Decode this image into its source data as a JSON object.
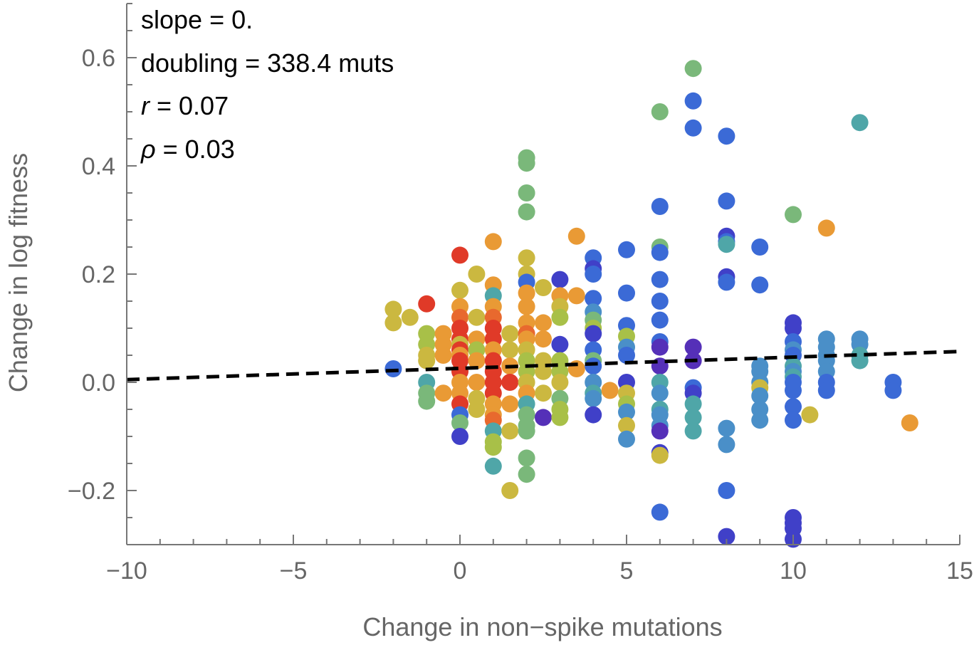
{
  "chart_data": {
    "type": "scatter",
    "title": "",
    "xlabel": "Change in non−spike mutations",
    "ylabel": "Change in log fitness",
    "xlim": [
      -10,
      15
    ],
    "ylim": [
      -0.3,
      0.7
    ],
    "xticks": [
      -10,
      -5,
      0,
      5,
      10,
      15
    ],
    "xtick_labels": [
      "−10",
      "−5",
      "0",
      "5",
      "10",
      "15"
    ],
    "yticks": [
      -0.2,
      0.0,
      0.2,
      0.4,
      0.6
    ],
    "ytick_labels": [
      "−0.2",
      "0.0",
      "0.2",
      "0.4",
      "0.6"
    ],
    "grid": false,
    "fit_line": {
      "style": "dashed",
      "color": "#000000",
      "x": [
        -10,
        15
      ],
      "y": [
        0.005,
        0.057
      ]
    },
    "annotations": {
      "slope": {
        "label": "slope = 0."
      },
      "doubling": {
        "label": "doubling = 338.4 muts"
      },
      "r": {
        "symbol": "r",
        "text": " = 0.07"
      },
      "rho": {
        "symbol": "ρ",
        "text": " = 0.03"
      }
    },
    "colors": {
      "R": "#e03a28",
      "OR": "#e8692e",
      "O": "#e99a35",
      "Y": "#cbb840",
      "L": "#a8c048",
      "G": "#7ab87a",
      "T": "#4fa6a8",
      "LB": "#4a8fc8",
      "B": "#3b6ad6",
      "I": "#4040c8",
      "P": "#5530b8"
    },
    "points": [
      [
        -2,
        0.135,
        "Y"
      ],
      [
        -2,
        0.11,
        "Y"
      ],
      [
        -2,
        0.025,
        "B"
      ],
      [
        -1.5,
        0.12,
        "Y"
      ],
      [
        -1,
        0.145,
        "R"
      ],
      [
        -1,
        0.09,
        "L"
      ],
      [
        -1,
        0.07,
        "L"
      ],
      [
        -1,
        0.05,
        "Y"
      ],
      [
        -1,
        0.04,
        "Y"
      ],
      [
        -1,
        0.0,
        "T"
      ],
      [
        -1,
        -0.02,
        "G"
      ],
      [
        -1,
        -0.035,
        "G"
      ],
      [
        -0.5,
        0.09,
        "O"
      ],
      [
        -0.5,
        0.07,
        "O"
      ],
      [
        -0.5,
        0.05,
        "O"
      ],
      [
        -0.5,
        -0.02,
        "O"
      ],
      [
        0,
        0.235,
        "R"
      ],
      [
        0,
        0.17,
        "Y"
      ],
      [
        0,
        0.14,
        "O"
      ],
      [
        0,
        0.12,
        "OR"
      ],
      [
        0,
        0.1,
        "R"
      ],
      [
        0,
        0.08,
        "R"
      ],
      [
        0,
        0.07,
        "Y"
      ],
      [
        0,
        0.06,
        "R"
      ],
      [
        0,
        0.05,
        "O"
      ],
      [
        0,
        0.04,
        "R"
      ],
      [
        0,
        0.02,
        "R"
      ],
      [
        0,
        0.0,
        "O"
      ],
      [
        0,
        -0.02,
        "O"
      ],
      [
        0,
        -0.04,
        "R"
      ],
      [
        0,
        -0.06,
        "B"
      ],
      [
        0,
        -0.075,
        "G"
      ],
      [
        0,
        -0.1,
        "I"
      ],
      [
        0.5,
        0.2,
        "Y"
      ],
      [
        0.5,
        0.12,
        "Y"
      ],
      [
        0.5,
        0.08,
        "O"
      ],
      [
        0.5,
        0.06,
        "L"
      ],
      [
        0.5,
        0.04,
        "O"
      ],
      [
        0.5,
        0.0,
        "O"
      ],
      [
        0.5,
        -0.03,
        "Y"
      ],
      [
        0.5,
        -0.05,
        "Y"
      ],
      [
        1,
        0.26,
        "O"
      ],
      [
        1,
        0.18,
        "O"
      ],
      [
        1,
        0.16,
        "T"
      ],
      [
        1,
        0.14,
        "O"
      ],
      [
        1,
        0.12,
        "OR"
      ],
      [
        1,
        0.1,
        "R"
      ],
      [
        1,
        0.08,
        "R"
      ],
      [
        1,
        0.06,
        "O"
      ],
      [
        1,
        0.04,
        "R"
      ],
      [
        1,
        0.02,
        "R"
      ],
      [
        1,
        0.0,
        "R"
      ],
      [
        1,
        -0.02,
        "R"
      ],
      [
        1,
        -0.04,
        "O"
      ],
      [
        1,
        -0.06,
        "O"
      ],
      [
        1,
        -0.07,
        "OR"
      ],
      [
        1,
        -0.09,
        "T"
      ],
      [
        1,
        -0.11,
        "L"
      ],
      [
        1,
        -0.12,
        "L"
      ],
      [
        1,
        -0.155,
        "T"
      ],
      [
        1.5,
        0.09,
        "Y"
      ],
      [
        1.5,
        0.06,
        "Y"
      ],
      [
        1.5,
        0.03,
        "O"
      ],
      [
        1.5,
        0.0,
        "R"
      ],
      [
        1.5,
        -0.04,
        "O"
      ],
      [
        1.5,
        -0.09,
        "Y"
      ],
      [
        1.5,
        -0.2,
        "Y"
      ],
      [
        2,
        0.415,
        "G"
      ],
      [
        2,
        0.405,
        "G"
      ],
      [
        2,
        0.35,
        "G"
      ],
      [
        2,
        0.315,
        "G"
      ],
      [
        2,
        0.23,
        "Y"
      ],
      [
        2,
        0.2,
        "Y"
      ],
      [
        2,
        0.185,
        "B"
      ],
      [
        2,
        0.165,
        "O"
      ],
      [
        2,
        0.14,
        "O"
      ],
      [
        2,
        0.11,
        "O"
      ],
      [
        2,
        0.09,
        "OR"
      ],
      [
        2,
        0.08,
        "O"
      ],
      [
        2,
        0.06,
        "Y"
      ],
      [
        2,
        0.04,
        "L"
      ],
      [
        2,
        0.02,
        "L"
      ],
      [
        2,
        0.0,
        "Y"
      ],
      [
        2,
        -0.02,
        "O"
      ],
      [
        2,
        -0.04,
        "T"
      ],
      [
        2,
        -0.06,
        "G"
      ],
      [
        2,
        -0.08,
        "G"
      ],
      [
        2,
        -0.09,
        "G"
      ],
      [
        2,
        -0.14,
        "G"
      ],
      [
        2,
        -0.17,
        "G"
      ],
      [
        2.5,
        0.175,
        "Y"
      ],
      [
        2.5,
        0.11,
        "O"
      ],
      [
        2.5,
        0.08,
        "O"
      ],
      [
        2.5,
        0.04,
        "Y"
      ],
      [
        2.5,
        0.02,
        "Y"
      ],
      [
        2.5,
        -0.02,
        "Y"
      ],
      [
        2.5,
        -0.065,
        "P"
      ],
      [
        3,
        0.19,
        "I"
      ],
      [
        3,
        0.16,
        "O"
      ],
      [
        3,
        0.14,
        "Y"
      ],
      [
        3,
        0.12,
        "L"
      ],
      [
        3,
        0.07,
        "I"
      ],
      [
        3,
        0.04,
        "L"
      ],
      [
        3,
        0.02,
        "L"
      ],
      [
        3,
        0.0,
        "Y"
      ],
      [
        3,
        -0.03,
        "G"
      ],
      [
        3,
        -0.05,
        "L"
      ],
      [
        3,
        -0.065,
        "L"
      ],
      [
        3.5,
        0.27,
        "O"
      ],
      [
        3.5,
        0.16,
        "O"
      ],
      [
        3.5,
        0.025,
        "O"
      ],
      [
        4,
        0.23,
        "B"
      ],
      [
        4,
        0.21,
        "I"
      ],
      [
        4,
        0.2,
        "B"
      ],
      [
        4,
        0.155,
        "B"
      ],
      [
        4,
        0.13,
        "LB"
      ],
      [
        4,
        0.115,
        "G"
      ],
      [
        4,
        0.1,
        "L"
      ],
      [
        4,
        0.09,
        "I"
      ],
      [
        4,
        0.06,
        "B"
      ],
      [
        4,
        0.04,
        "G"
      ],
      [
        4,
        0.03,
        "B"
      ],
      [
        4,
        0.0,
        "LB"
      ],
      [
        4,
        -0.02,
        "T"
      ],
      [
        4,
        -0.03,
        "LB"
      ],
      [
        4,
        -0.06,
        "I"
      ],
      [
        4.5,
        -0.015,
        "O"
      ],
      [
        5,
        0.245,
        "B"
      ],
      [
        5,
        0.165,
        "B"
      ],
      [
        5,
        0.105,
        "B"
      ],
      [
        5,
        0.085,
        "L"
      ],
      [
        5,
        0.065,
        "LB"
      ],
      [
        5,
        0.05,
        "B"
      ],
      [
        5,
        0.0,
        "I"
      ],
      [
        5,
        -0.02,
        "Y"
      ],
      [
        5,
        -0.04,
        "L"
      ],
      [
        5,
        -0.055,
        "LB"
      ],
      [
        5,
        -0.08,
        "Y"
      ],
      [
        5,
        -0.105,
        "LB"
      ],
      [
        6,
        0.5,
        "G"
      ],
      [
        6,
        0.325,
        "B"
      ],
      [
        6,
        0.25,
        "G"
      ],
      [
        6,
        0.24,
        "B"
      ],
      [
        6,
        0.19,
        "B"
      ],
      [
        6,
        0.15,
        "B"
      ],
      [
        6,
        0.115,
        "B"
      ],
      [
        6,
        0.075,
        "B"
      ],
      [
        6,
        0.065,
        "P"
      ],
      [
        6,
        0.03,
        "P"
      ],
      [
        6,
        0.0,
        "T"
      ],
      [
        6,
        -0.02,
        "LB"
      ],
      [
        6,
        -0.05,
        "T"
      ],
      [
        6,
        -0.06,
        "LB"
      ],
      [
        6,
        -0.08,
        "LB"
      ],
      [
        6,
        -0.09,
        "P"
      ],
      [
        6,
        -0.13,
        "I"
      ],
      [
        6,
        -0.135,
        "Y"
      ],
      [
        6,
        -0.24,
        "B"
      ],
      [
        7,
        0.58,
        "G"
      ],
      [
        7,
        0.52,
        "B"
      ],
      [
        7,
        0.47,
        "B"
      ],
      [
        7,
        0.065,
        "P"
      ],
      [
        7,
        0.04,
        "P"
      ],
      [
        7,
        -0.01,
        "B"
      ],
      [
        7,
        -0.02,
        "I"
      ],
      [
        7,
        -0.04,
        "T"
      ],
      [
        7,
        -0.065,
        "T"
      ],
      [
        7,
        -0.09,
        "T"
      ],
      [
        8,
        0.455,
        "B"
      ],
      [
        8,
        0.335,
        "B"
      ],
      [
        8,
        0.27,
        "I"
      ],
      [
        8,
        0.26,
        "B"
      ],
      [
        8,
        0.255,
        "T"
      ],
      [
        8,
        0.195,
        "I"
      ],
      [
        8,
        0.185,
        "B"
      ],
      [
        8,
        -0.085,
        "LB"
      ],
      [
        8,
        -0.115,
        "LB"
      ],
      [
        8,
        -0.2,
        "B"
      ],
      [
        8,
        -0.285,
        "I"
      ],
      [
        9,
        0.25,
        "B"
      ],
      [
        9,
        0.18,
        "B"
      ],
      [
        9,
        0.03,
        "LB"
      ],
      [
        9,
        0.02,
        "LB"
      ],
      [
        9,
        0.0,
        "LB"
      ],
      [
        9,
        -0.01,
        "Y"
      ],
      [
        9,
        -0.025,
        "LB"
      ],
      [
        9,
        -0.05,
        "LB"
      ],
      [
        9,
        -0.07,
        "LB"
      ],
      [
        10,
        0.31,
        "G"
      ],
      [
        10,
        0.11,
        "I"
      ],
      [
        10,
        0.1,
        "I"
      ],
      [
        10,
        0.075,
        "B"
      ],
      [
        10,
        0.06,
        "LB"
      ],
      [
        10,
        0.05,
        "B"
      ],
      [
        10,
        0.03,
        "T"
      ],
      [
        10,
        0.02,
        "LB"
      ],
      [
        10,
        0.01,
        "T"
      ],
      [
        10,
        0.0,
        "B"
      ],
      [
        10,
        -0.015,
        "B"
      ],
      [
        10,
        -0.045,
        "B"
      ],
      [
        10,
        -0.07,
        "B"
      ],
      [
        10,
        -0.25,
        "I"
      ],
      [
        10,
        -0.26,
        "I"
      ],
      [
        10,
        -0.27,
        "I"
      ],
      [
        10,
        -0.29,
        "I"
      ],
      [
        10.5,
        -0.06,
        "Y"
      ],
      [
        11,
        0.285,
        "O"
      ],
      [
        11,
        0.08,
        "LB"
      ],
      [
        11,
        0.065,
        "LB"
      ],
      [
        11,
        0.05,
        "LB"
      ],
      [
        11,
        0.04,
        "LB"
      ],
      [
        11,
        0.02,
        "LB"
      ],
      [
        11,
        0.0,
        "B"
      ],
      [
        11,
        -0.015,
        "B"
      ],
      [
        12,
        0.48,
        "T"
      ],
      [
        12,
        0.08,
        "LB"
      ],
      [
        12,
        0.07,
        "LB"
      ],
      [
        12,
        0.05,
        "T"
      ],
      [
        12,
        0.04,
        "T"
      ],
      [
        13,
        0.0,
        "B"
      ],
      [
        13,
        -0.015,
        "B"
      ],
      [
        13.5,
        -0.075,
        "O"
      ]
    ]
  }
}
